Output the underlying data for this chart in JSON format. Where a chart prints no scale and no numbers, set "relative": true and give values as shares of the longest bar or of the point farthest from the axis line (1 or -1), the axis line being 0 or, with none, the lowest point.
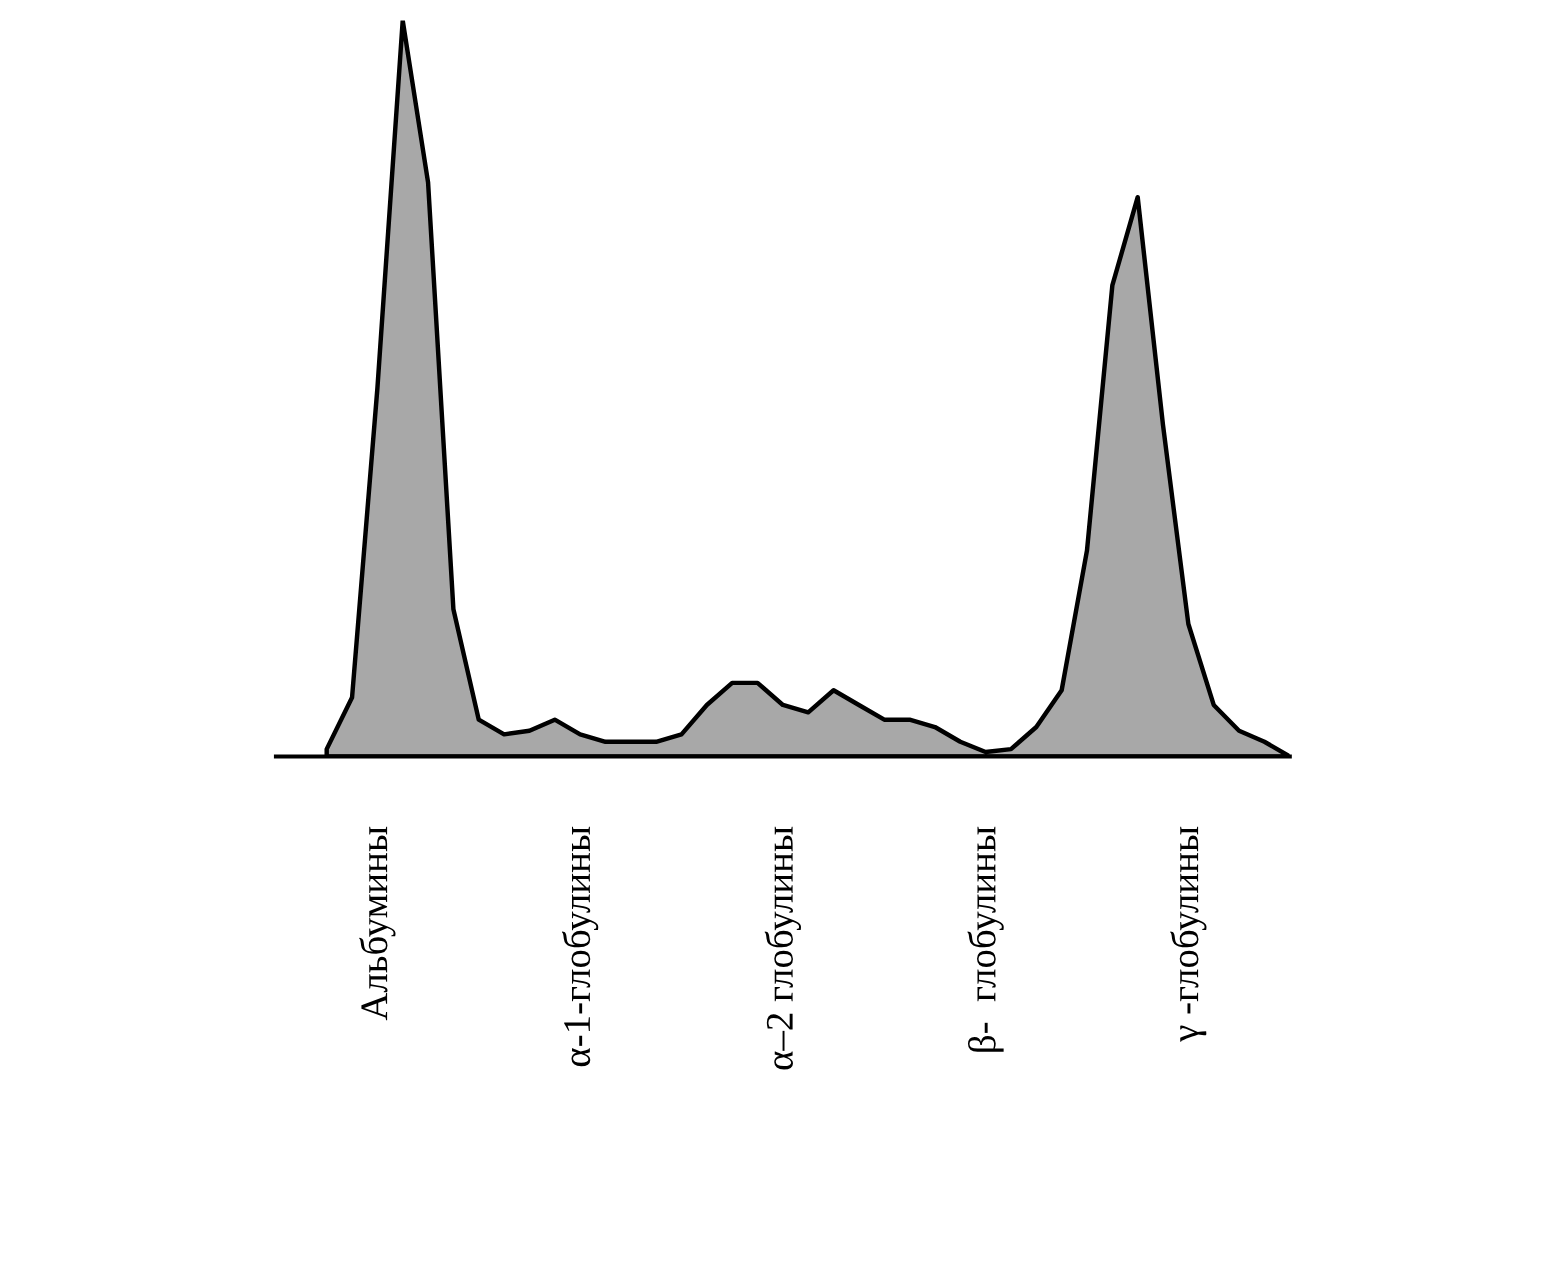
{
  "chart_data": {
    "type": "area",
    "relative": true,
    "categories": [
      null,
      null,
      null,
      null,
      null,
      null,
      null,
      null,
      null,
      null,
      null,
      null,
      null,
      null,
      null,
      null,
      null,
      null,
      null,
      null,
      null,
      null,
      null,
      null,
      null,
      null,
      null,
      null,
      null,
      null,
      null,
      null,
      null,
      null,
      null,
      null,
      null,
      null,
      null
    ],
    "series": [
      {
        "color": "#a8a8a8",
        "values": [
          0.01,
          0.08,
          0.5,
          1.0,
          0.78,
          0.2,
          0.05,
          0.03,
          0.035,
          0.05,
          0.03,
          0.02,
          0.02,
          0.02,
          0.03,
          0.07,
          0.1,
          0.1,
          0.07,
          0.06,
          0.09,
          0.07,
          0.05,
          0.05,
          0.04,
          0.02,
          0.006,
          0.01,
          0.04,
          0.09,
          0.28,
          0.64,
          0.76,
          0.45,
          0.18,
          0.07,
          0.035,
          0.02,
          0
        ]
      }
    ],
    "annotations": [
      "Альбумины",
      "α-1-глобулины",
      "α–2 глобулины",
      "β-  глобулины",
      "γ -глобулины"
    ],
    "grid": false,
    "legend": false
  }
}
